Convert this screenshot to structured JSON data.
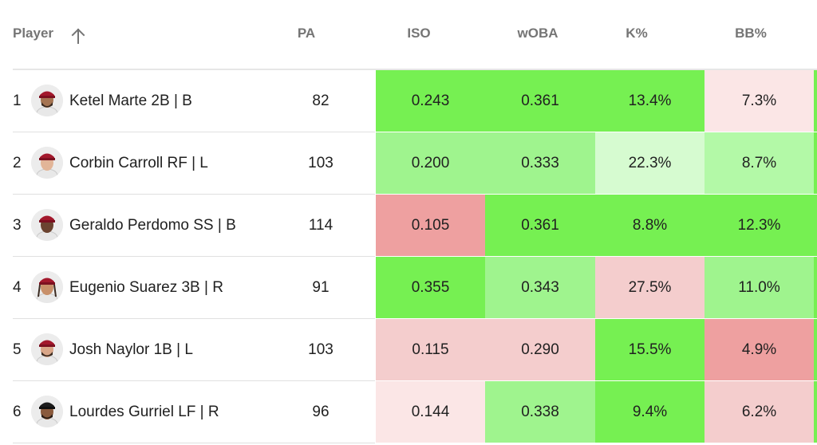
{
  "header": {
    "player_label": "Player",
    "pa_label": "PA",
    "iso_label": "ISO",
    "woba_label": "wOBA",
    "k_label": "K%",
    "bb_label": "BB%",
    "sort_icon": "arrow-up-icon"
  },
  "colors": {
    "strong_green": "#76f052",
    "mid_green": "#9ff48e",
    "light_green": "#b3f9a7",
    "pale_green": "#d6fbd0",
    "strong_red": "#eea0a0",
    "mid_red": "#f4cdcd",
    "pale_red": "#fbe6e6"
  },
  "rows": [
    {
      "rank": "1",
      "name": "Ketel Marte 2B | B",
      "pa": "82",
      "iso": "0.243",
      "woba": "0.361",
      "k": "13.4%",
      "bb": "7.3%"
    },
    {
      "rank": "2",
      "name": "Corbin Carroll RF | L",
      "pa": "103",
      "iso": "0.200",
      "woba": "0.333",
      "k": "22.3%",
      "bb": "8.7%"
    },
    {
      "rank": "3",
      "name": "Geraldo Perdomo SS | B",
      "pa": "114",
      "iso": "0.105",
      "woba": "0.361",
      "k": "8.8%",
      "bb": "12.3%"
    },
    {
      "rank": "4",
      "name": "Eugenio Suarez 3B | R",
      "pa": "91",
      "iso": "0.355",
      "woba": "0.343",
      "k": "27.5%",
      "bb": "11.0%"
    },
    {
      "rank": "5",
      "name": "Josh Naylor 1B | L",
      "pa": "103",
      "iso": "0.115",
      "woba": "0.290",
      "k": "15.5%",
      "bb": "4.9%"
    },
    {
      "rank": "6",
      "name": "Lourdes Gurriel LF | R",
      "pa": "96",
      "iso": "0.144",
      "woba": "0.338",
      "k": "9.4%",
      "bb": "6.2%"
    }
  ]
}
